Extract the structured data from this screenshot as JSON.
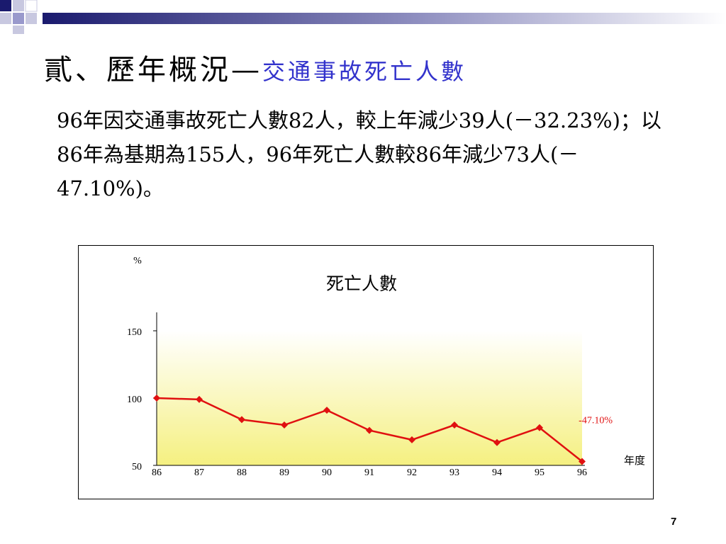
{
  "slide": {
    "title_main": "貳、歷年概況—",
    "title_sub": "交通事故死亡人數",
    "body_text": "96年因交通事故死亡人數82人，較上年減少39人(－32.23%)；以86年為基期為155人，96年死亡人數較86年減少73人(－47.10%)。",
    "page_number": "7",
    "colors": {
      "title_sub": "#3333cc",
      "series": "#e01010",
      "plot_fill_top": "#ffffff",
      "plot_fill_bottom": "#f5f080",
      "annotation": "#e01010",
      "deco_dark": "#1a1a6e",
      "deco_light": "#9999cc"
    }
  },
  "chart_data": {
    "type": "line",
    "title": "死亡人數",
    "ylabel": "%",
    "xlabel": "年度",
    "categories": [
      "86",
      "87",
      "88",
      "89",
      "90",
      "91",
      "92",
      "93",
      "94",
      "95",
      "96"
    ],
    "series": [
      {
        "values": [
          100,
          99,
          84,
          80,
          91,
          76,
          69,
          80,
          67,
          78,
          52.9
        ]
      }
    ],
    "ylim": [
      50,
      150
    ],
    "yticks": [
      "50",
      "100",
      "150"
    ],
    "annotation": {
      "text": "-47.10%",
      "category": "96"
    },
    "grid": false,
    "marker": "diamond"
  }
}
